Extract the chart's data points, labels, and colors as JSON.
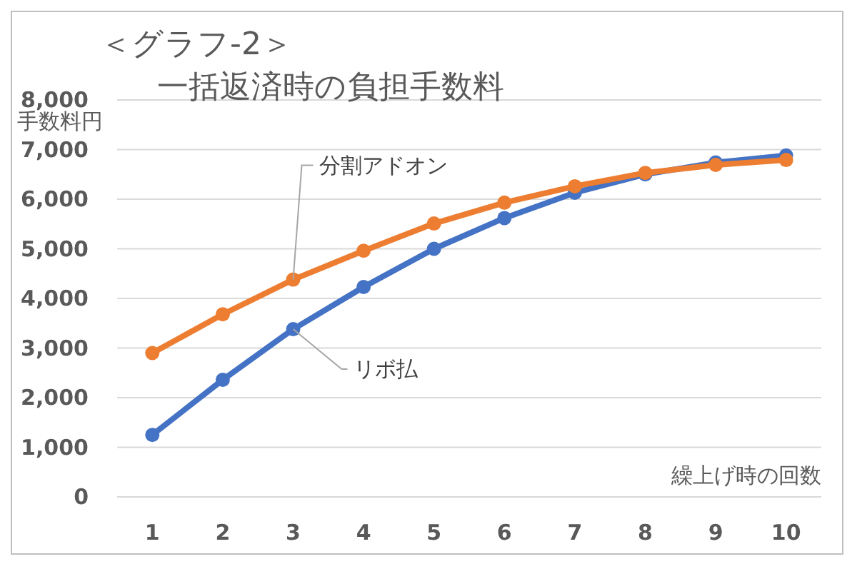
{
  "chart_data": {
    "type": "line",
    "title": "＜グラフ-2＞",
    "subtitle": "一括返済時の負担手数料",
    "ylabel": "手数料円",
    "xlabel": "繰上げ時の回数",
    "categories": [
      "1",
      "2",
      "3",
      "4",
      "5",
      "6",
      "7",
      "8",
      "9",
      "10"
    ],
    "series": [
      {
        "name": "リボ払",
        "color": "#4472c4",
        "values": [
          1250,
          2360,
          3380,
          4230,
          5000,
          5620,
          6130,
          6500,
          6740,
          6880
        ]
      },
      {
        "name": "分割アドオン",
        "color": "#ed7d31",
        "values": [
          2900,
          3680,
          4380,
          4960,
          5510,
          5930,
          6260,
          6530,
          6690,
          6790
        ]
      }
    ],
    "ylim": [
      0,
      8000
    ],
    "yticks": [
      {
        "value": 0,
        "label": "0"
      },
      {
        "value": 1000,
        "label": "1,000"
      },
      {
        "value": 2000,
        "label": "2,000"
      },
      {
        "value": 3000,
        "label": "3,000"
      },
      {
        "value": 4000,
        "label": "4,000"
      },
      {
        "value": 5000,
        "label": "5,000"
      },
      {
        "value": 6000,
        "label": "6,000"
      },
      {
        "value": 7000,
        "label": "7,000"
      },
      {
        "value": 8000,
        "label": "8,000"
      }
    ],
    "grid": "y",
    "legend": false,
    "marker": "circle",
    "line_style": "solid"
  }
}
